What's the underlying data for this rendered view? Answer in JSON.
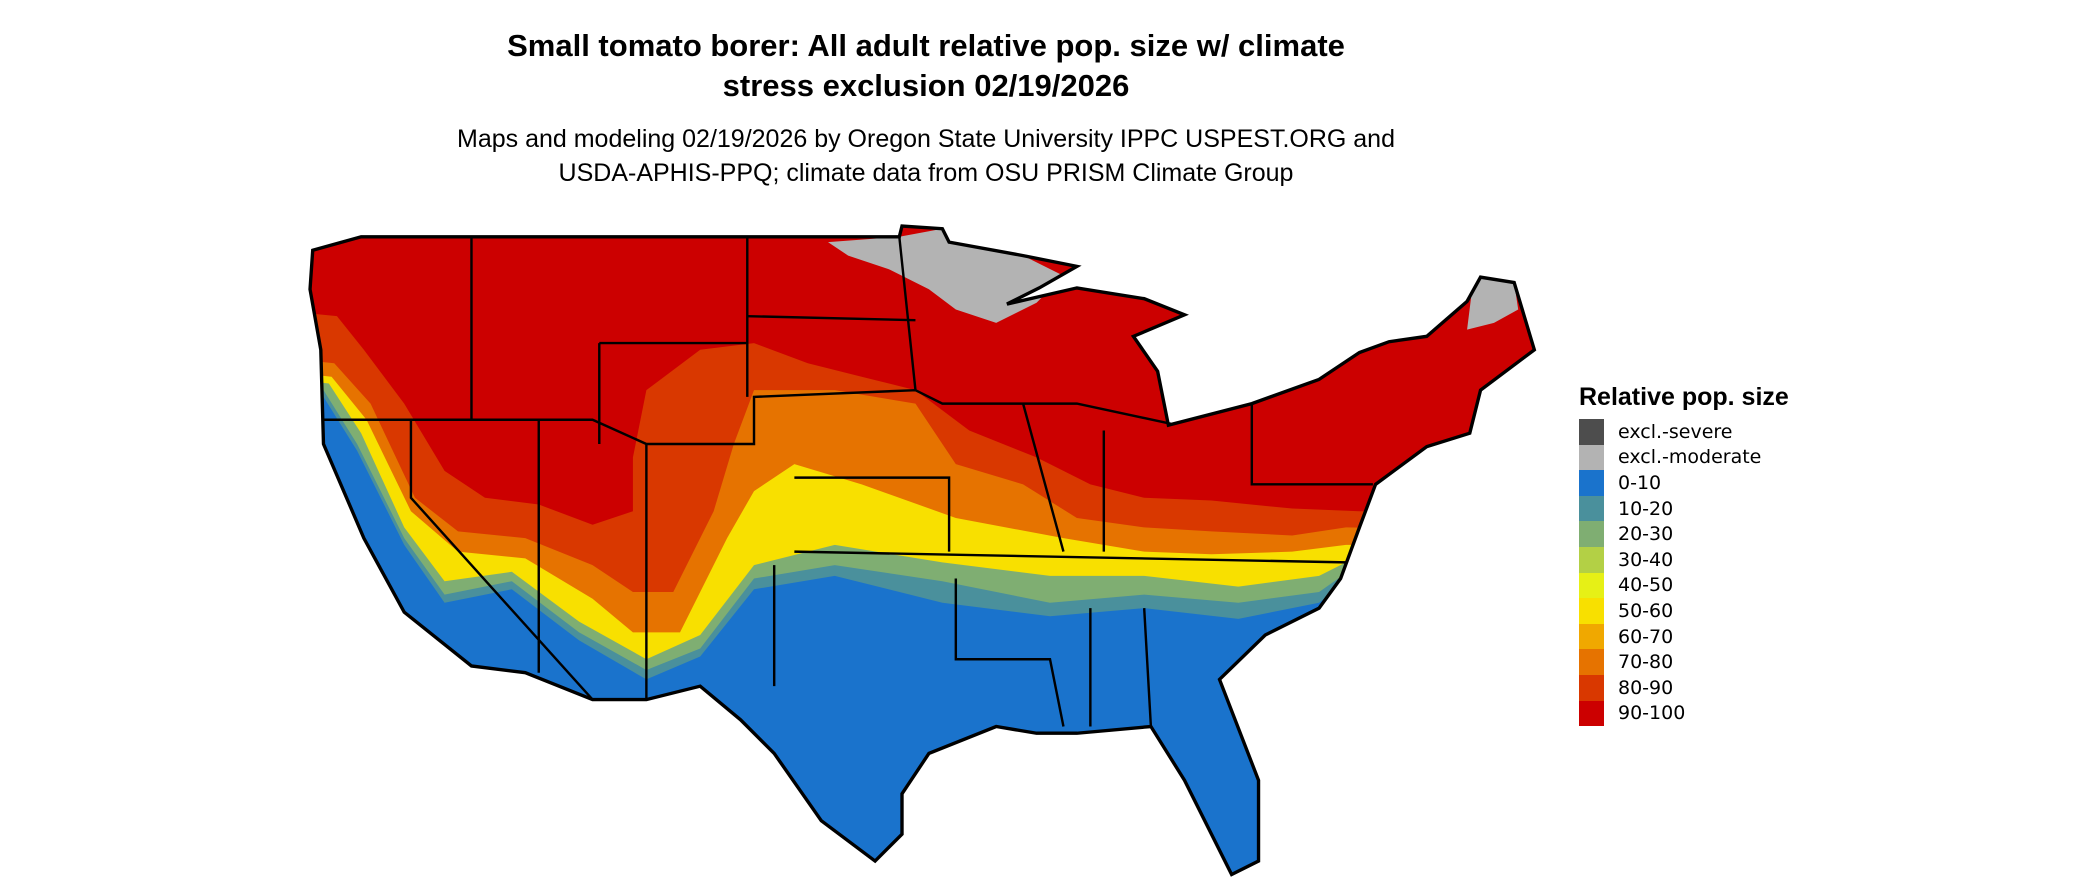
{
  "title": {
    "line1": "Small tomato borer: All adult relative pop. size w/ climate",
    "line2": "stress exclusion 02/19/2026"
  },
  "subtitle": {
    "line1": "Maps and modeling 02/19/2026 by Oregon State University IPPC USPEST.ORG and",
    "line2": "USDA-APHIS-PPQ; climate data from OSU PRISM Climate Group"
  },
  "legend": {
    "title": "Relative pop. size",
    "position": "right",
    "items": [
      {
        "label": "excl.-severe",
        "color": "#4d4d4d"
      },
      {
        "label": "excl.-moderate",
        "color": "#b3b3b3"
      },
      {
        "label": "0-10",
        "color": "#1a73cc"
      },
      {
        "label": "10-20",
        "color": "#4a909c"
      },
      {
        "label": "20-30",
        "color": "#7fae72"
      },
      {
        "label": "30-40",
        "color": "#b3d045"
      },
      {
        "label": "40-50",
        "color": "#e6f016"
      },
      {
        "label": "50-60",
        "color": "#f8e000"
      },
      {
        "label": "60-70",
        "color": "#f0a800"
      },
      {
        "label": "70-80",
        "color": "#e67300"
      },
      {
        "label": "80-90",
        "color": "#d93800"
      },
      {
        "label": "90-100",
        "color": "#cc0000"
      }
    ]
  },
  "map": {
    "region": "Contiguous United States",
    "state_borders": true
  }
}
